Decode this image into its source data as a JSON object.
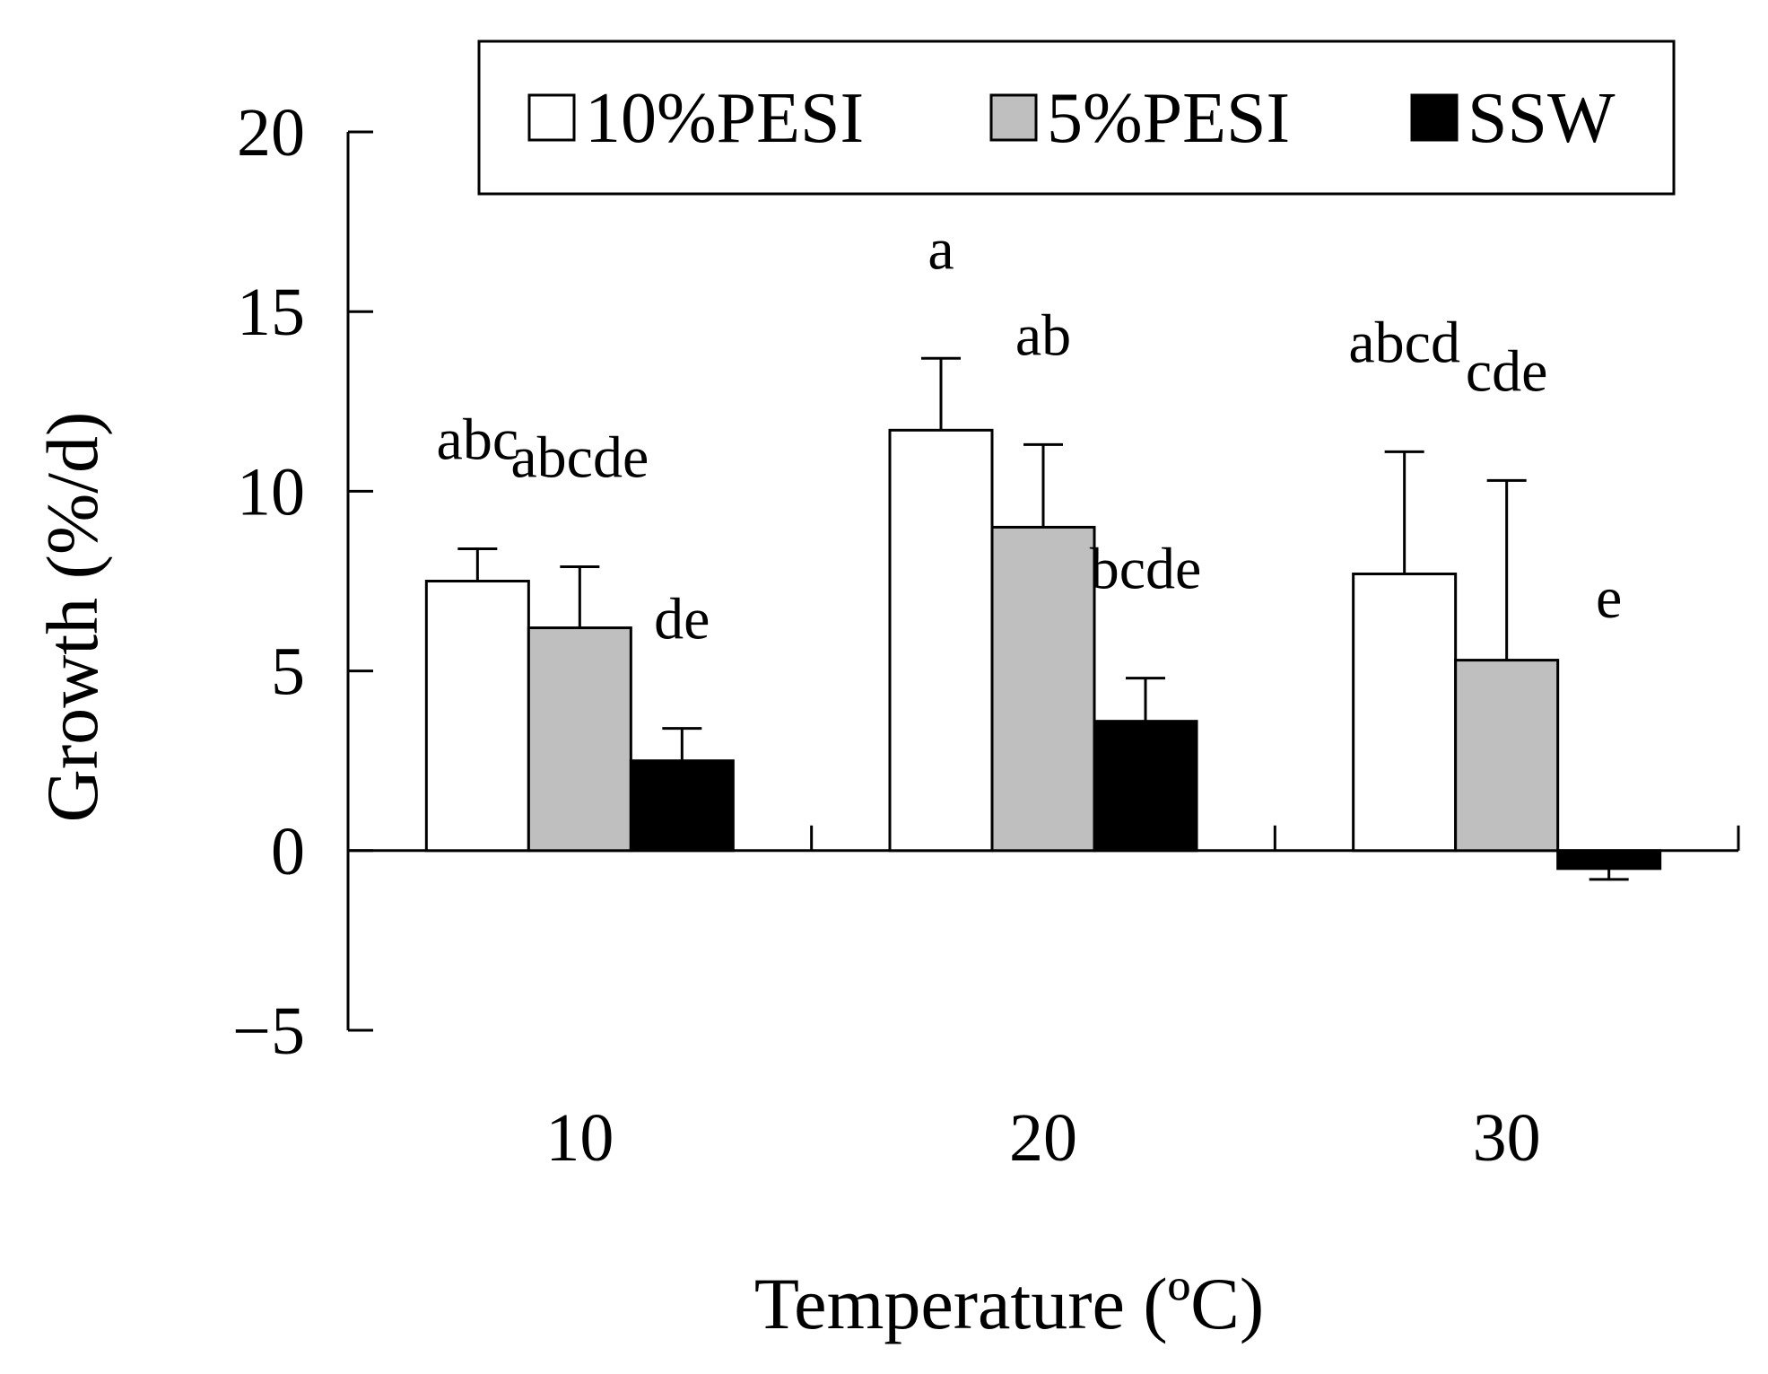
{
  "chart_data": {
    "type": "bar",
    "title": "",
    "xlabel": "Temperature (ºC)",
    "ylabel": "Growth (%/d)",
    "categories": [
      "10",
      "20",
      "30"
    ],
    "ylim": [
      -5,
      20
    ],
    "yticks": [
      -5,
      0,
      5,
      10,
      15,
      20
    ],
    "ytick_labels": [
      "−5",
      "0",
      "5",
      "10",
      "15",
      "20"
    ],
    "grid": false,
    "legend_position": "top-right",
    "series": [
      {
        "name": "10%PESI",
        "color": "#ffffff",
        "values": [
          7.5,
          11.7,
          7.7
        ],
        "errors": [
          0.9,
          2.0,
          3.4
        ],
        "labels": [
          "abc",
          "a",
          "abcd"
        ]
      },
      {
        "name": "5%PESI",
        "color": "#bfbfbf",
        "values": [
          6.2,
          9.0,
          5.3
        ],
        "errors": [
          1.7,
          2.3,
          5.0
        ],
        "labels": [
          "abcde",
          "ab",
          "cde"
        ]
      },
      {
        "name": "SSW",
        "color": "#000000",
        "values": [
          2.5,
          3.6,
          -0.5
        ],
        "errors": [
          0.9,
          1.2,
          0.3
        ],
        "labels": [
          "de",
          "bcde",
          "e"
        ]
      }
    ]
  }
}
